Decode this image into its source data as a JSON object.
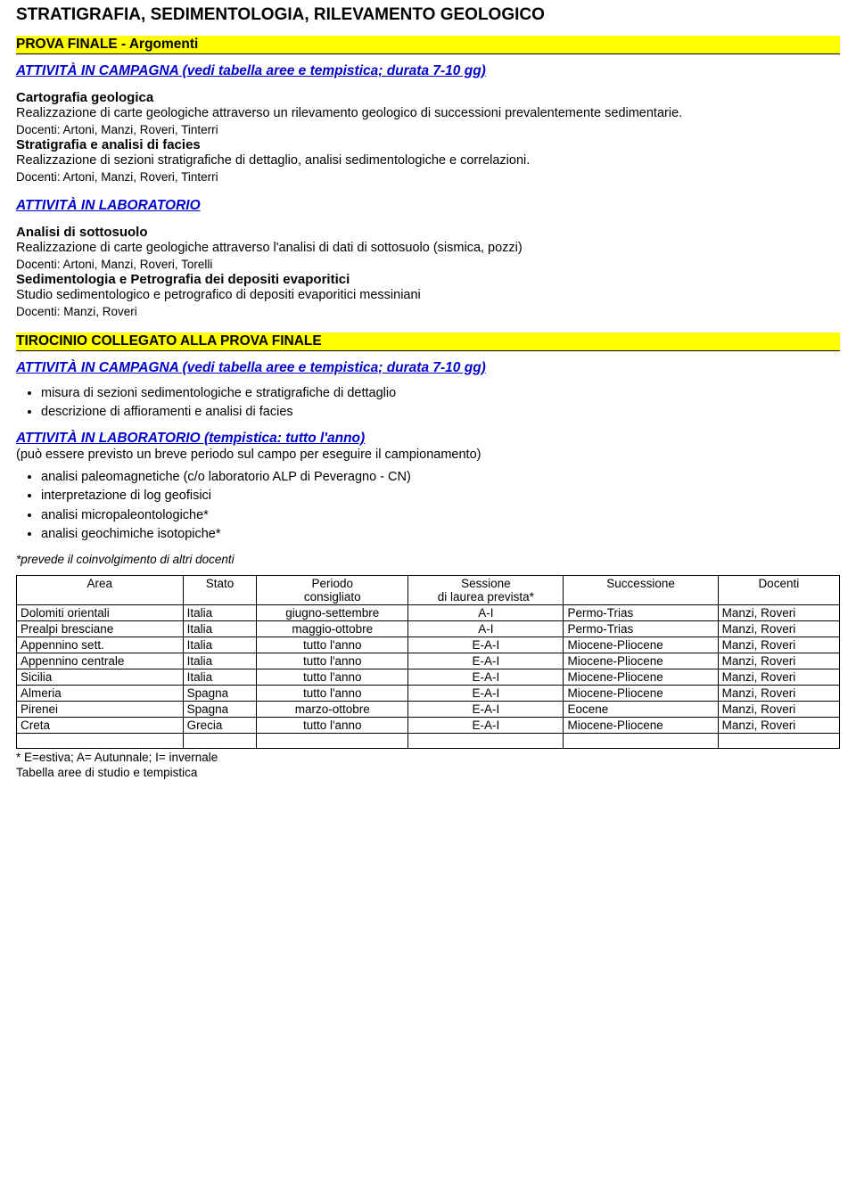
{
  "title_main": "STRATIGRAFIA, SEDIMENTOLOGIA, RILEVAMENTO GEOLOGICO",
  "sec1": {
    "heading": "PROVA FINALE - Argomenti",
    "campagna": "ATTIVITÀ IN CAMPAGNA (vedi tabella aree e tempistica; durata 7-10 gg)",
    "s1_title": "Cartografia geologica",
    "s1_body": "Realizzazione di carte geologiche attraverso un rilevamento geologico di successioni prevalentemente sedimentarie.",
    "s1_doc": "Docenti: Artoni, Manzi, Roveri, Tinterri",
    "s2_title": "Stratigrafia e analisi di facies",
    "s2_body": "Realizzazione di sezioni stratigrafiche di dettaglio, analisi sedimentologiche e correlazioni.",
    "s2_doc": "Docenti: Artoni, Manzi, Roveri, Tinterri",
    "lab": "ATTIVITÀ IN LABORATORIO",
    "s3_title": "Analisi di sottosuolo",
    "s3_body": "Realizzazione di carte geologiche attraverso l'analisi di dati di sottosuolo (sismica, pozzi)",
    "s3_doc": "Docenti: Artoni, Manzi, Roveri, Torelli",
    "s4_title": "Sedimentologia e Petrografia dei depositi evaporitici",
    "s4_body": "Studio sedimentologico e petrografico di depositi evaporitici messiniani",
    "s4_doc": "Docenti: Manzi, Roveri"
  },
  "sec2": {
    "heading": "TIROCINIO COLLEGATO ALLA PROVA FINALE",
    "campagna": "ATTIVITÀ IN CAMPAGNA (vedi tabella aree e tempistica; durata 7-10 gg)",
    "camp_items": [
      "misura di sezioni sedimentologiche e stratigrafiche di dettaglio",
      "descrizione di affioramenti e analisi di facies"
    ],
    "lab": " ATTIVITÀ IN LABORATORIO (tempistica: tutto l'anno)",
    "lab_note": "(può essere previsto un breve periodo sul campo per eseguire il campionamento)",
    "lab_items": [
      "analisi paleomagnetiche (c/o laboratorio ALP di Peveragno - CN)",
      "interpretazione di log geofisici",
      "analisi micropaleontologiche*",
      "analisi geochimiche isotopiche*"
    ],
    "footnote": "*prevede il coinvolgimento di altri docenti"
  },
  "table": {
    "headers": [
      "Area",
      "Stato",
      "Periodo consigliato",
      "Sessione di laurea prevista*",
      "Successione",
      "Docenti"
    ],
    "rows": [
      [
        "Dolomiti orientali",
        "Italia",
        "giugno-settembre",
        "A-I",
        "Permo-Trias",
        "Manzi, Roveri"
      ],
      [
        "Prealpi bresciane",
        "Italia",
        "maggio-ottobre",
        "A-I",
        "Permo-Trias",
        "Manzi, Roveri"
      ],
      [
        "Appennino sett.",
        "Italia",
        "tutto l'anno",
        "E-A-I",
        "Miocene-Pliocene",
        "Manzi, Roveri"
      ],
      [
        "Appennino centrale",
        "Italia",
        "tutto l'anno",
        "E-A-I",
        "Miocene-Pliocene",
        "Manzi, Roveri"
      ],
      [
        "Sicilia",
        "Italia",
        "tutto l'anno",
        "E-A-I",
        "Miocene-Pliocene",
        "Manzi, Roveri"
      ],
      [
        "Almeria",
        "Spagna",
        "tutto l'anno",
        "E-A-I",
        "Miocene-Pliocene",
        "Manzi, Roveri"
      ],
      [
        "Pirenei",
        "Spagna",
        "marzo-ottobre",
        "E-A-I",
        "Eocene",
        "Manzi, Roveri"
      ],
      [
        "Creta",
        "Grecia",
        "tutto l'anno",
        "E-A-I",
        "Miocene-Pliocene",
        "Manzi, Roveri"
      ]
    ],
    "legend": "* E=estiva; A= Autunnale; I= invernale",
    "caption": "Tabella aree di studio e tempistica",
    "col_align": [
      "left",
      "left",
      "center",
      "center",
      "left",
      "left"
    ]
  }
}
